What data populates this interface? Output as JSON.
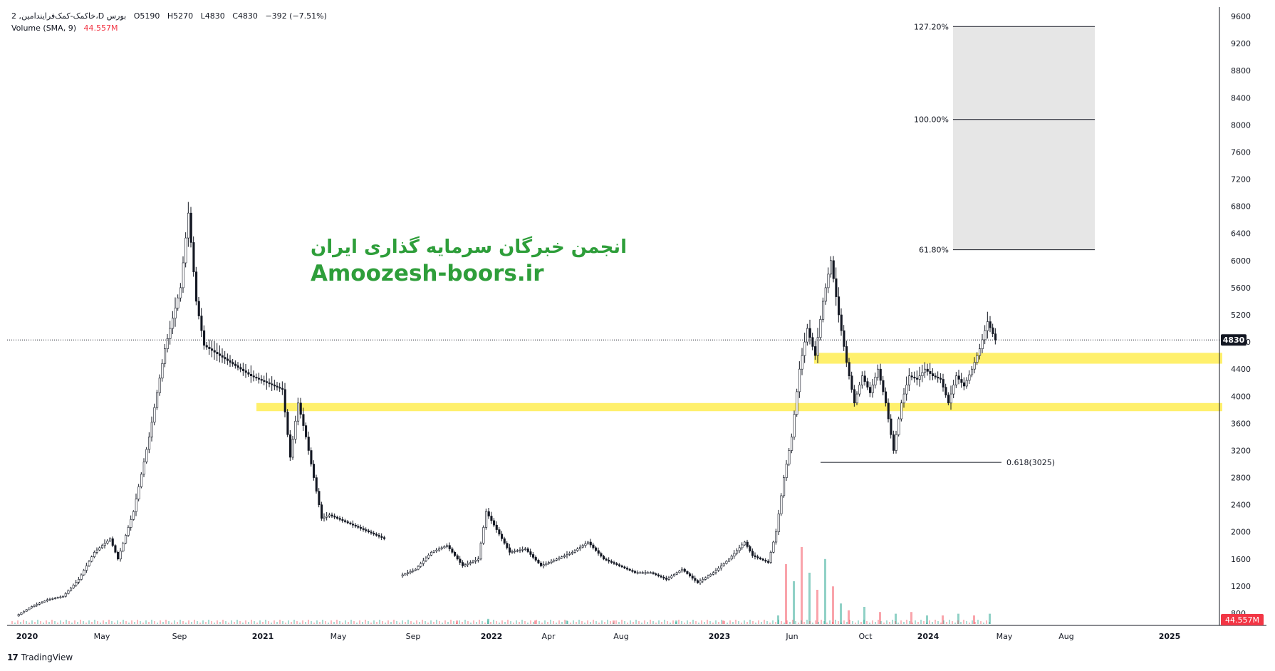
{
  "legend": {
    "symbol_line": "2 ,خاکمک-کمک‌فرایندامین،D بورس",
    "open": "O5190",
    "high": "H5270",
    "low": "L4830",
    "close": "C4830",
    "change": "−392 (−7.51%)",
    "volume_label": "Volume (SMA, 9)",
    "volume_value": "44.557M"
  },
  "watermark": {
    "persian": "انجمن خبرگان سرمایه گذاری ایران",
    "site": "Amoozesh-boors.ir"
  },
  "brand": {
    "logo": "17",
    "name": "TradingView"
  },
  "colors": {
    "up": "#089981",
    "down": "#f23645",
    "candle": "#131722",
    "zone": "#ffeb3b",
    "fib_fill": "#e6e6e6",
    "price_tag_bg": "#131722",
    "volume_tag_bg": "#f23645",
    "watermark": "#2e9e3a"
  },
  "chart_data": {
    "type": "candlestick",
    "y_axis": {
      "ticks": [
        800,
        1200,
        1600,
        2000,
        2400,
        2800,
        3200,
        3600,
        4000,
        4400,
        4800,
        5200,
        5600,
        6000,
        6400,
        6800,
        7200,
        7600,
        8000,
        8400,
        8800,
        9200,
        9600
      ],
      "range": [
        700,
        9700
      ]
    },
    "x_axis": {
      "labels": [
        {
          "label": "2020",
          "bold": true
        },
        {
          "label": "May",
          "bold": false
        },
        {
          "label": "Sep",
          "bold": false
        },
        {
          "label": "2021",
          "bold": true
        },
        {
          "label": "May",
          "bold": false
        },
        {
          "label": "Sep",
          "bold": false
        },
        {
          "label": "2022",
          "bold": true
        },
        {
          "label": "Apr",
          "bold": false
        },
        {
          "label": "Aug",
          "bold": false
        },
        {
          "label": "2023",
          "bold": true
        },
        {
          "label": "Jun",
          "bold": false
        },
        {
          "label": "Oct",
          "bold": false
        },
        {
          "label": "2024",
          "bold": true
        },
        {
          "label": "May",
          "bold": false
        },
        {
          "label": "Aug",
          "bold": false
        },
        {
          "label": "2025",
          "bold": true
        }
      ]
    },
    "last_price": 4830,
    "last_price_label": "4830",
    "volume_label": "44.557M",
    "price_path": [
      [
        0,
        760
      ],
      [
        2,
        900
      ],
      [
        4,
        1000
      ],
      [
        6,
        1050
      ],
      [
        8,
        1300
      ],
      [
        10,
        1700
      ],
      [
        12,
        1900
      ],
      [
        13,
        1600
      ],
      [
        15,
        2300
      ],
      [
        17,
        3400
      ],
      [
        19,
        4700
      ],
      [
        21,
        5600
      ],
      [
        22,
        6700
      ],
      [
        23,
        5400
      ],
      [
        24,
        4750
      ],
      [
        26,
        4600
      ],
      [
        28,
        4450
      ],
      [
        30,
        4300
      ],
      [
        32,
        4200
      ],
      [
        34,
        4100
      ],
      [
        35,
        3100
      ],
      [
        36,
        3900
      ],
      [
        37,
        3400
      ],
      [
        38,
        2800
      ],
      [
        39,
        2200
      ],
      [
        40,
        2250
      ],
      [
        42,
        2150
      ],
      [
        44,
        2050
      ],
      [
        46,
        1950
      ],
      [
        47,
        1900
      ],
      [
        49,
        1350
      ],
      [
        51,
        1450
      ],
      [
        53,
        1700
      ],
      [
        55,
        1800
      ],
      [
        57,
        1500
      ],
      [
        59,
        1600
      ],
      [
        60,
        2300
      ],
      [
        61,
        2100
      ],
      [
        63,
        1700
      ],
      [
        65,
        1750
      ],
      [
        67,
        1500
      ],
      [
        69,
        1600
      ],
      [
        71,
        1700
      ],
      [
        73,
        1850
      ],
      [
        75,
        1600
      ],
      [
        77,
        1500
      ],
      [
        79,
        1400
      ],
      [
        81,
        1400
      ],
      [
        83,
        1300
      ],
      [
        85,
        1450
      ],
      [
        87,
        1250
      ],
      [
        89,
        1400
      ],
      [
        91,
        1600
      ],
      [
        93,
        1850
      ],
      [
        94,
        1650
      ],
      [
        96,
        1550
      ],
      [
        97,
        2000
      ],
      [
        98,
        2800
      ],
      [
        99,
        3400
      ],
      [
        100,
        4400
      ],
      [
        101,
        5000
      ],
      [
        102,
        4600
      ],
      [
        103,
        5400
      ],
      [
        104,
        6000
      ],
      [
        105,
        5200
      ],
      [
        106,
        4500
      ],
      [
        107,
        3900
      ],
      [
        108,
        4300
      ],
      [
        109,
        4050
      ],
      [
        110,
        4400
      ],
      [
        111,
        3900
      ],
      [
        112,
        3200
      ],
      [
        113,
        3900
      ],
      [
        114,
        4300
      ],
      [
        115,
        4250
      ],
      [
        116,
        4400
      ],
      [
        117,
        4300
      ],
      [
        118,
        4250
      ],
      [
        119,
        3900
      ],
      [
        120,
        4300
      ],
      [
        121,
        4150
      ],
      [
        122,
        4400
      ],
      [
        123,
        4700
      ],
      [
        124,
        5100
      ],
      [
        125,
        4830
      ]
    ],
    "volume_bars_note": "bar heights in relative units (0-1)",
    "volume_bars": [
      [
        56,
        0.02
      ],
      [
        60,
        0.03
      ],
      [
        66,
        0.02
      ],
      [
        70,
        0.02
      ],
      [
        76,
        0.02
      ],
      [
        84,
        0.02
      ],
      [
        90,
        0.02
      ],
      [
        97,
        0.05
      ],
      [
        98,
        0.35
      ],
      [
        99,
        0.25
      ],
      [
        100,
        0.45
      ],
      [
        101,
        0.3
      ],
      [
        102,
        0.2
      ],
      [
        103,
        0.38
      ],
      [
        104,
        0.22
      ],
      [
        105,
        0.12
      ],
      [
        106,
        0.08
      ],
      [
        108,
        0.1
      ],
      [
        110,
        0.07
      ],
      [
        112,
        0.06
      ],
      [
        114,
        0.07
      ],
      [
        116,
        0.05
      ],
      [
        118,
        0.05
      ],
      [
        120,
        0.06
      ],
      [
        122,
        0.05
      ],
      [
        124,
        0.06
      ]
    ],
    "annotations": {
      "zones": [
        {
          "from": 3780,
          "to": 3900
        },
        {
          "from": 4480,
          "to": 4640
        }
      ],
      "fib_extension": {
        "levels": [
          {
            "label": "127.20%",
            "value": 9450
          },
          {
            "label": "100.00%",
            "value": 8080
          },
          {
            "label": "61.80%",
            "value": 6160
          }
        ]
      },
      "fib_retracement": {
        "label": "0.618(3025)",
        "value": 3025
      }
    }
  }
}
